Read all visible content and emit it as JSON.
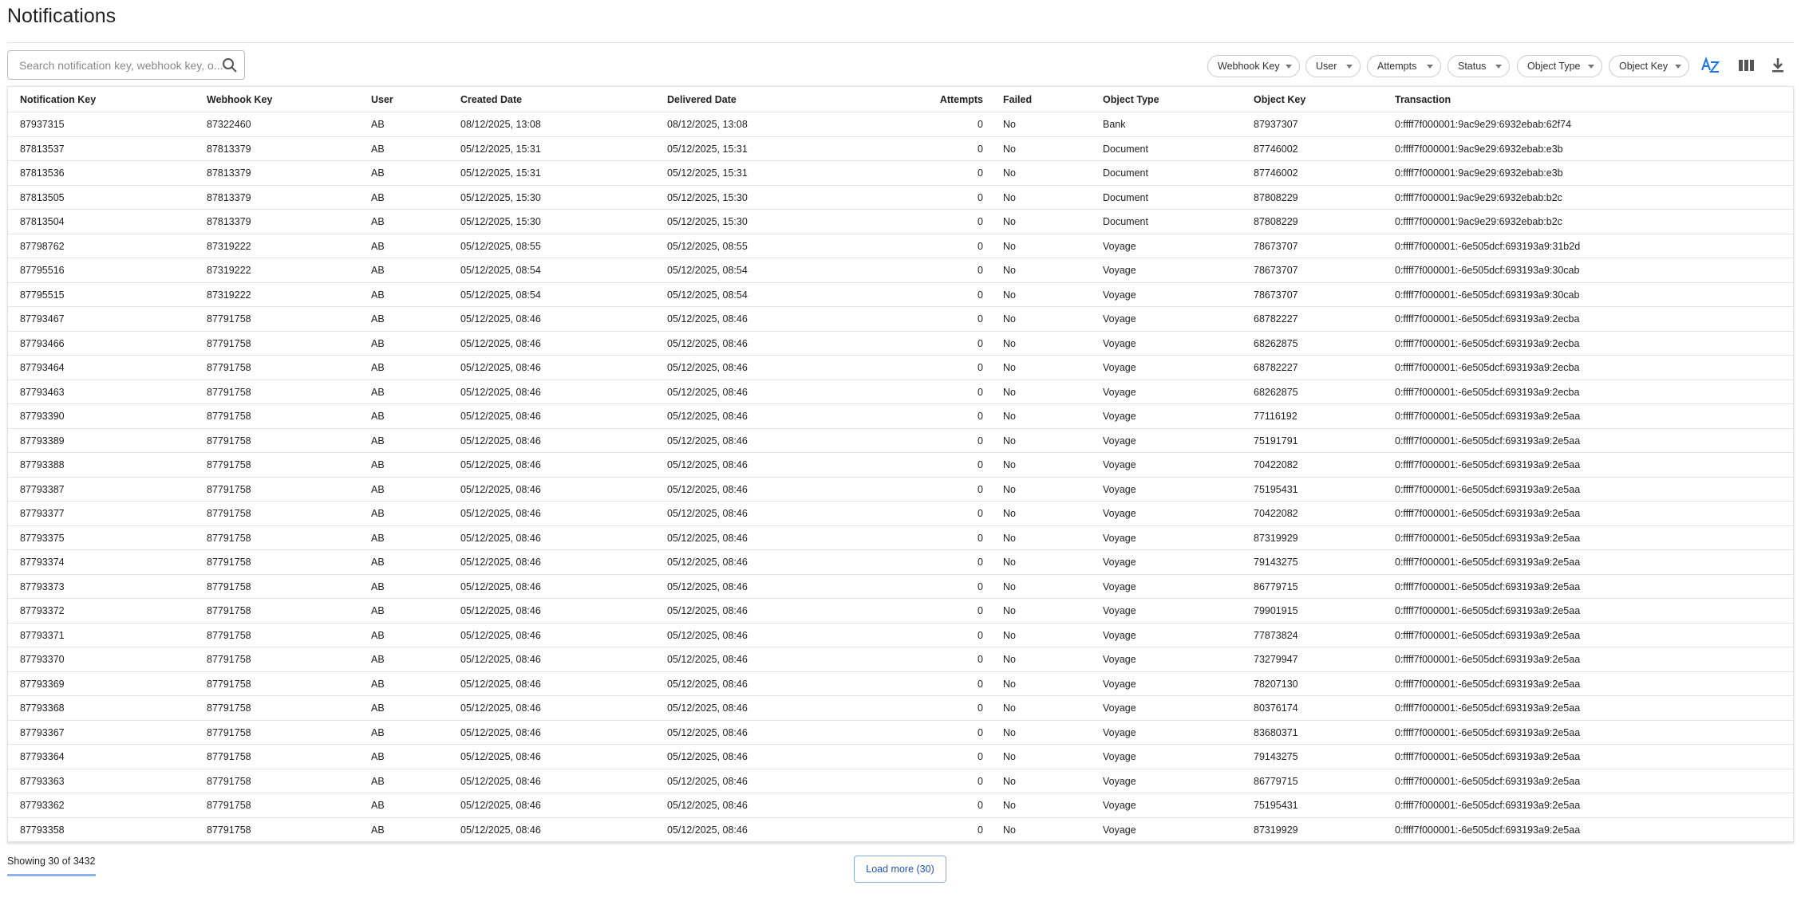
{
  "title": "Notifications",
  "search_placeholder": "Search notification key, webhook key, o...",
  "filters": [
    "Webhook Key",
    "User",
    "Attempts",
    "Status",
    "Object Type",
    "Object Key"
  ],
  "table": {
    "columns": [
      "Notification Key",
      "Webhook Key",
      "User",
      "Created Date",
      "Delivered Date",
      "Attempts",
      "Failed",
      "Object Type",
      "Object Key",
      "Transaction"
    ],
    "rows": [
      [
        "87937315",
        "87322460",
        "AB",
        "08/12/2025, 13:08",
        "08/12/2025, 13:08",
        0,
        "No",
        "Bank",
        "87937307",
        "0:ffff7f000001:9ac9e29:6932ebab:62f74"
      ],
      [
        "87813537",
        "87813379",
        "AB",
        "05/12/2025, 15:31",
        "05/12/2025, 15:31",
        0,
        "No",
        "Document",
        "87746002",
        "0:ffff7f000001:9ac9e29:6932ebab:e3b"
      ],
      [
        "87813536",
        "87813379",
        "AB",
        "05/12/2025, 15:31",
        "05/12/2025, 15:31",
        0,
        "No",
        "Document",
        "87746002",
        "0:ffff7f000001:9ac9e29:6932ebab:e3b"
      ],
      [
        "87813505",
        "87813379",
        "AB",
        "05/12/2025, 15:30",
        "05/12/2025, 15:30",
        0,
        "No",
        "Document",
        "87808229",
        "0:ffff7f000001:9ac9e29:6932ebab:b2c"
      ],
      [
        "87813504",
        "87813379",
        "AB",
        "05/12/2025, 15:30",
        "05/12/2025, 15:30",
        0,
        "No",
        "Document",
        "87808229",
        "0:ffff7f000001:9ac9e29:6932ebab:b2c"
      ],
      [
        "87798762",
        "87319222",
        "AB",
        "05/12/2025, 08:55",
        "05/12/2025, 08:55",
        0,
        "No",
        "Voyage",
        "78673707",
        "0:ffff7f000001:-6e505dcf:693193a9:31b2d"
      ],
      [
        "87795516",
        "87319222",
        "AB",
        "05/12/2025, 08:54",
        "05/12/2025, 08:54",
        0,
        "No",
        "Voyage",
        "78673707",
        "0:ffff7f000001:-6e505dcf:693193a9:30cab"
      ],
      [
        "87795515",
        "87319222",
        "AB",
        "05/12/2025, 08:54",
        "05/12/2025, 08:54",
        0,
        "No",
        "Voyage",
        "78673707",
        "0:ffff7f000001:-6e505dcf:693193a9:30cab"
      ],
      [
        "87793467",
        "87791758",
        "AB",
        "05/12/2025, 08:46",
        "05/12/2025, 08:46",
        0,
        "No",
        "Voyage",
        "68782227",
        "0:ffff7f000001:-6e505dcf:693193a9:2ecba"
      ],
      [
        "87793466",
        "87791758",
        "AB",
        "05/12/2025, 08:46",
        "05/12/2025, 08:46",
        0,
        "No",
        "Voyage",
        "68262875",
        "0:ffff7f000001:-6e505dcf:693193a9:2ecba"
      ],
      [
        "87793464",
        "87791758",
        "AB",
        "05/12/2025, 08:46",
        "05/12/2025, 08:46",
        0,
        "No",
        "Voyage",
        "68782227",
        "0:ffff7f000001:-6e505dcf:693193a9:2ecba"
      ],
      [
        "87793463",
        "87791758",
        "AB",
        "05/12/2025, 08:46",
        "05/12/2025, 08:46",
        0,
        "No",
        "Voyage",
        "68262875",
        "0:ffff7f000001:-6e505dcf:693193a9:2ecba"
      ],
      [
        "87793390",
        "87791758",
        "AB",
        "05/12/2025, 08:46",
        "05/12/2025, 08:46",
        0,
        "No",
        "Voyage",
        "77116192",
        "0:ffff7f000001:-6e505dcf:693193a9:2e5aa"
      ],
      [
        "87793389",
        "87791758",
        "AB",
        "05/12/2025, 08:46",
        "05/12/2025, 08:46",
        0,
        "No",
        "Voyage",
        "75191791",
        "0:ffff7f000001:-6e505dcf:693193a9:2e5aa"
      ],
      [
        "87793388",
        "87791758",
        "AB",
        "05/12/2025, 08:46",
        "05/12/2025, 08:46",
        0,
        "No",
        "Voyage",
        "70422082",
        "0:ffff7f000001:-6e505dcf:693193a9:2e5aa"
      ],
      [
        "87793387",
        "87791758",
        "AB",
        "05/12/2025, 08:46",
        "05/12/2025, 08:46",
        0,
        "No",
        "Voyage",
        "75195431",
        "0:ffff7f000001:-6e505dcf:693193a9:2e5aa"
      ],
      [
        "87793377",
        "87791758",
        "AB",
        "05/12/2025, 08:46",
        "05/12/2025, 08:46",
        0,
        "No",
        "Voyage",
        "70422082",
        "0:ffff7f000001:-6e505dcf:693193a9:2e5aa"
      ],
      [
        "87793375",
        "87791758",
        "AB",
        "05/12/2025, 08:46",
        "05/12/2025, 08:46",
        0,
        "No",
        "Voyage",
        "87319929",
        "0:ffff7f000001:-6e505dcf:693193a9:2e5aa"
      ],
      [
        "87793374",
        "87791758",
        "AB",
        "05/12/2025, 08:46",
        "05/12/2025, 08:46",
        0,
        "No",
        "Voyage",
        "79143275",
        "0:ffff7f000001:-6e505dcf:693193a9:2e5aa"
      ],
      [
        "87793373",
        "87791758",
        "AB",
        "05/12/2025, 08:46",
        "05/12/2025, 08:46",
        0,
        "No",
        "Voyage",
        "86779715",
        "0:ffff7f000001:-6e505dcf:693193a9:2e5aa"
      ],
      [
        "87793372",
        "87791758",
        "AB",
        "05/12/2025, 08:46",
        "05/12/2025, 08:46",
        0,
        "No",
        "Voyage",
        "79901915",
        "0:ffff7f000001:-6e505dcf:693193a9:2e5aa"
      ],
      [
        "87793371",
        "87791758",
        "AB",
        "05/12/2025, 08:46",
        "05/12/2025, 08:46",
        0,
        "No",
        "Voyage",
        "77873824",
        "0:ffff7f000001:-6e505dcf:693193a9:2e5aa"
      ],
      [
        "87793370",
        "87791758",
        "AB",
        "05/12/2025, 08:46",
        "05/12/2025, 08:46",
        0,
        "No",
        "Voyage",
        "73279947",
        "0:ffff7f000001:-6e505dcf:693193a9:2e5aa"
      ],
      [
        "87793369",
        "87791758",
        "AB",
        "05/12/2025, 08:46",
        "05/12/2025, 08:46",
        0,
        "No",
        "Voyage",
        "78207130",
        "0:ffff7f000001:-6e505dcf:693193a9:2e5aa"
      ],
      [
        "87793368",
        "87791758",
        "AB",
        "05/12/2025, 08:46",
        "05/12/2025, 08:46",
        0,
        "No",
        "Voyage",
        "80376174",
        "0:ffff7f000001:-6e505dcf:693193a9:2e5aa"
      ],
      [
        "87793367",
        "87791758",
        "AB",
        "05/12/2025, 08:46",
        "05/12/2025, 08:46",
        0,
        "No",
        "Voyage",
        "83680371",
        "0:ffff7f000001:-6e505dcf:693193a9:2e5aa"
      ],
      [
        "87793364",
        "87791758",
        "AB",
        "05/12/2025, 08:46",
        "05/12/2025, 08:46",
        0,
        "No",
        "Voyage",
        "79143275",
        "0:ffff7f000001:-6e505dcf:693193a9:2e5aa"
      ],
      [
        "87793363",
        "87791758",
        "AB",
        "05/12/2025, 08:46",
        "05/12/2025, 08:46",
        0,
        "No",
        "Voyage",
        "86779715",
        "0:ffff7f000001:-6e505dcf:693193a9:2e5aa"
      ],
      [
        "87793362",
        "87791758",
        "AB",
        "05/12/2025, 08:46",
        "05/12/2025, 08:46",
        0,
        "No",
        "Voyage",
        "75195431",
        "0:ffff7f000001:-6e505dcf:693193a9:2e5aa"
      ],
      [
        "87793358",
        "87791758",
        "AB",
        "05/12/2025, 08:46",
        "05/12/2025, 08:46",
        0,
        "No",
        "Voyage",
        "87319929",
        "0:ffff7f000001:-6e505dcf:693193a9:2e5aa"
      ]
    ]
  },
  "footer": {
    "status": "Showing 30 of 3432",
    "load_more": "Load more (30)"
  }
}
